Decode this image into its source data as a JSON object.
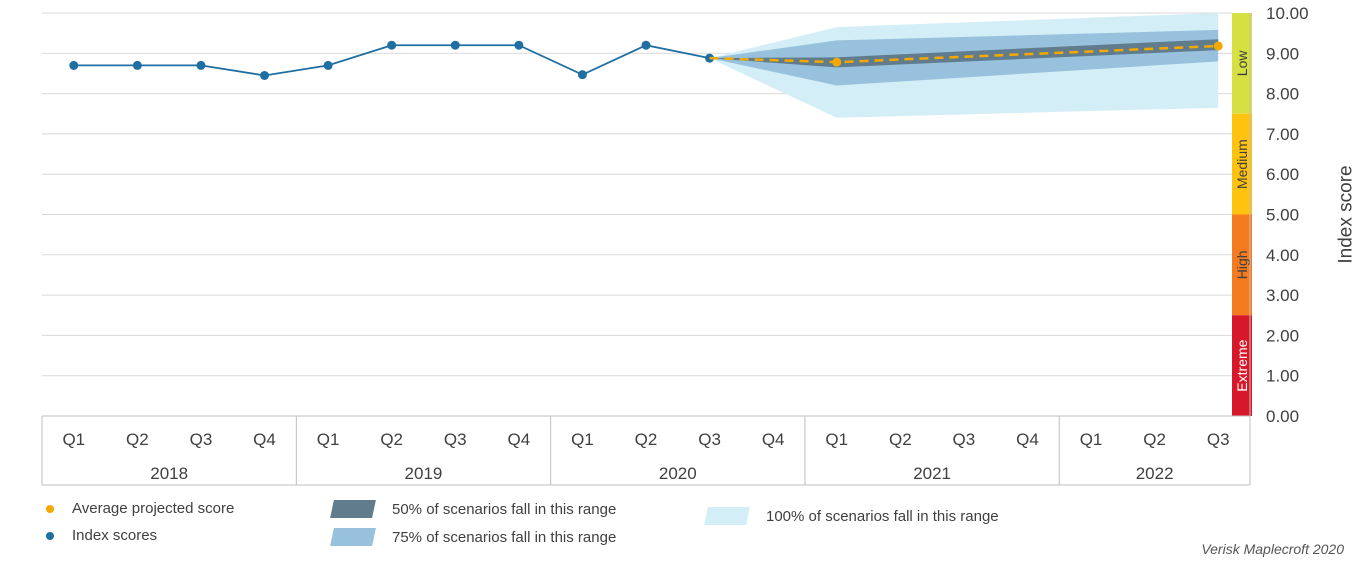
{
  "chart_data": {
    "type": "line",
    "ylabel": "Index score",
    "ylim": [
      0,
      10
    ],
    "y_ticks": [
      "0.00",
      "1.00",
      "2.00",
      "3.00",
      "4.00",
      "5.00",
      "6.00",
      "7.00",
      "8.00",
      "9.00",
      "10.00"
    ],
    "quarters": [
      "Q1",
      "Q2",
      "Q3",
      "Q4",
      "Q1",
      "Q2",
      "Q3",
      "Q4",
      "Q1",
      "Q2",
      "Q3",
      "Q4",
      "Q1",
      "Q2",
      "Q3",
      "Q4",
      "Q1",
      "Q2",
      "Q3"
    ],
    "years": [
      {
        "label": "2018",
        "span": 4
      },
      {
        "label": "2019",
        "span": 4
      },
      {
        "label": "2020",
        "span": 4
      },
      {
        "label": "2021",
        "span": 4
      },
      {
        "label": "2022",
        "span": 3
      }
    ],
    "series": [
      {
        "name": "Index scores",
        "color": "#1f6fa3",
        "points": [
          {
            "x": 0,
            "y": 8.7
          },
          {
            "x": 1,
            "y": 8.7
          },
          {
            "x": 2,
            "y": 8.7
          },
          {
            "x": 3,
            "y": 8.45
          },
          {
            "x": 4,
            "y": 8.7
          },
          {
            "x": 5,
            "y": 9.2
          },
          {
            "x": 6,
            "y": 9.2
          },
          {
            "x": 7,
            "y": 9.2
          },
          {
            "x": 8,
            "y": 8.47
          },
          {
            "x": 9,
            "y": 9.2
          },
          {
            "x": 10,
            "y": 8.88
          }
        ]
      },
      {
        "name": "Average projected score",
        "color": "#f5a800",
        "dashed": true,
        "points": [
          {
            "x": 10,
            "y": 8.88
          },
          {
            "x": 12,
            "y": 8.78
          },
          {
            "x": 18,
            "y": 9.18
          }
        ]
      }
    ],
    "projection_ranges": [
      {
        "name": "100% of scenarios fall in this range",
        "color": "#d4eef7",
        "x": [
          10,
          12,
          18
        ],
        "low": [
          8.88,
          7.4,
          7.65
        ],
        "high": [
          8.88,
          9.65,
          10.0
        ]
      },
      {
        "name": "75% of scenarios fall in this range",
        "color": "#97c1dc",
        "x": [
          10,
          12,
          18
        ],
        "low": [
          8.88,
          8.2,
          8.8
        ],
        "high": [
          8.88,
          9.32,
          9.58
        ]
      },
      {
        "name": "50% of scenarios fall in this range",
        "color": "#617d8d",
        "x": [
          10,
          12,
          18
        ],
        "low": [
          8.88,
          8.65,
          9.08
        ],
        "high": [
          8.88,
          8.9,
          9.35
        ]
      }
    ],
    "risk_bands": [
      {
        "label": "Low",
        "from": 7.5,
        "to": 10,
        "color": "#d6e042"
      },
      {
        "label": "Medium",
        "from": 5,
        "to": 7.5,
        "color": "#ffc20e"
      },
      {
        "label": "High",
        "from": 2.5,
        "to": 5,
        "color": "#f47b20"
      },
      {
        "label": "Extreme",
        "from": 0,
        "to": 2.5,
        "color": "#d7182a"
      }
    ]
  },
  "legend": {
    "avg": "Average projected score",
    "index": "Index scores",
    "r50": "50% of scenarios fall in this range",
    "r75": "75% of scenarios fall in this range",
    "r100": "100% of scenarios fall in this range"
  },
  "source": "Verisk Maplecroft 2020"
}
